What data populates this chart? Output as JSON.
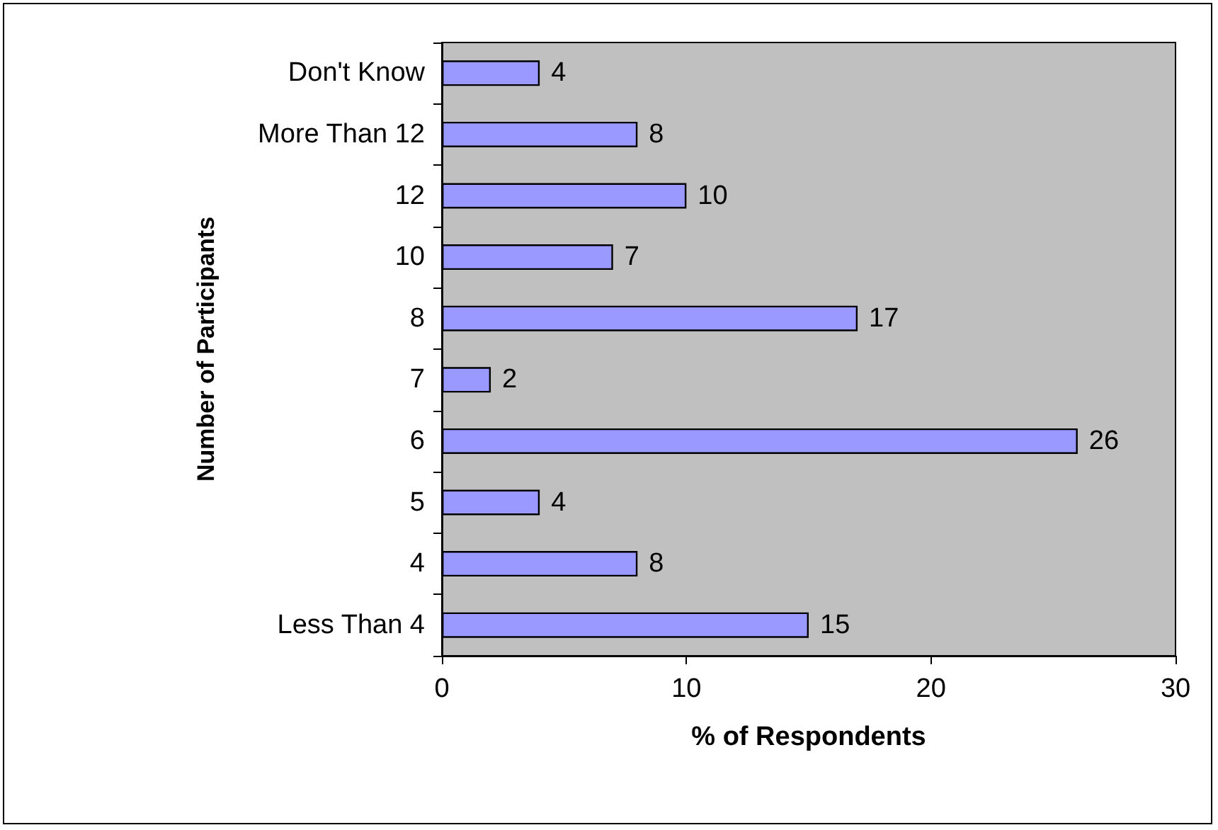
{
  "chart_data": {
    "type": "bar",
    "orientation": "horizontal",
    "xlabel": "% of Respondents",
    "ylabel": "Number of Participants",
    "categories": [
      "Don't Know",
      "More Than 12",
      "12",
      "10",
      "8",
      "7",
      "6",
      "5",
      "4",
      "Less Than 4"
    ],
    "values": [
      4,
      8,
      10,
      7,
      17,
      2,
      26,
      4,
      8,
      15
    ],
    "color": "#9999ff",
    "xlim": [
      0,
      30
    ],
    "xticks": [
      0,
      10,
      20,
      30
    ],
    "grid": false,
    "data_labels": true
  }
}
